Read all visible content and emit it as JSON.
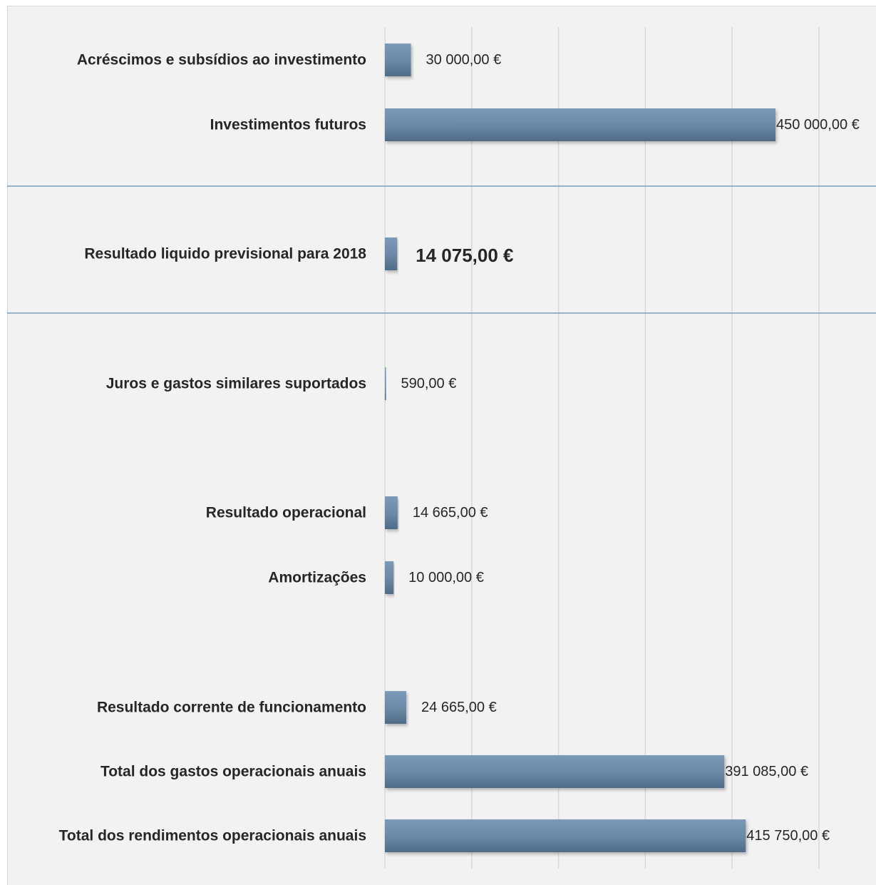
{
  "chart_data": {
    "type": "bar",
    "orientation": "horizontal",
    "categories": [
      "Acréscimos e subsídios ao investimento",
      "Investimentos futuros",
      "Resultado liquido previsional para 2018",
      "Juros e gastos similares suportados",
      "Resultado operacional",
      "Amortizações",
      "Resultado corrente de funcionamento",
      "Total dos gastos operacionais anuais",
      "Total dos rendimentos operacionais anuais"
    ],
    "values": [
      30000,
      450000,
      14075,
      590,
      14665,
      10000,
      24665,
      391085,
      415750
    ],
    "value_labels": [
      "30 000,00 €",
      "450 000,00 €",
      "14 075,00 €",
      "590,00 €",
      "14 665,00 €",
      "10 000,00 €",
      "24 665,00 €",
      "391 085,00 €",
      "415 750,00 €"
    ],
    "emphasized_category": "Resultado liquido previsional para 2018",
    "xlim": [
      0,
      550000
    ],
    "x_gridlines": [
      0,
      100000,
      200000,
      300000,
      400000,
      500000
    ],
    "grid": true,
    "legend": "none",
    "bar_color": "#6b89a6",
    "separator_color": "#7f9bb6",
    "background_color": "#f2f2f2"
  }
}
